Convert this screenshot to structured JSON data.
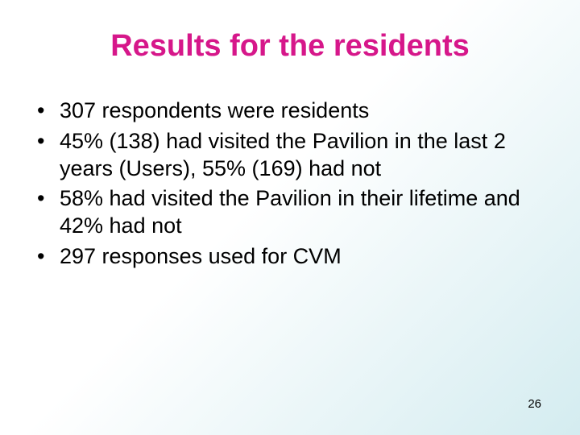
{
  "slide": {
    "title": "Results for the residents",
    "title_color": "#d6178a",
    "title_fontsize": 38,
    "bullets": [
      "307 respondents were residents",
      "45% (138) had visited the Pavilion in the last 2 years (Users), 55% (169) had not",
      "58% had visited the Pavilion in their lifetime and 42% had not",
      "297 responses used for CVM"
    ],
    "bullet_fontsize": 27,
    "bullet_color": "#000000",
    "page_number": "26",
    "background_gradient": {
      "from": "#ffffff",
      "to": "#d4ecf0",
      "direction": "135deg"
    }
  }
}
